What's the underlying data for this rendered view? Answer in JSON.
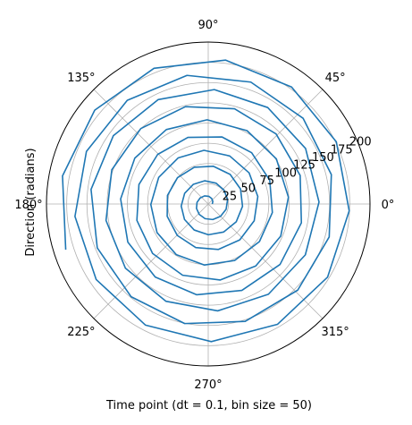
{
  "chart_data": {
    "type": "line",
    "projection": "polar",
    "title": "",
    "xlabel": "Time point (dt = 0.1, bin size = 50)",
    "ylabel": "Direction (radians)",
    "theta_tick_labels": [
      "0°",
      "45°",
      "90°",
      "135°",
      "180°",
      "225°",
      "270°",
      "315°"
    ],
    "theta_tick_degrees": [
      0,
      45,
      90,
      135,
      180,
      225,
      270,
      315
    ],
    "r_tick_labels": [
      "25",
      "50",
      "75",
      "100",
      "125",
      "150",
      "175",
      "200"
    ],
    "r_ticks": [
      25,
      50,
      75,
      100,
      125,
      150,
      175,
      200
    ],
    "rlim": [
      0,
      200
    ],
    "grid": true,
    "series": [
      {
        "color": "#1f77b4",
        "curve": "archimedean spiral, counter-clockwise, starting near theta = 0",
        "theta_radians": [
          0.0,
          0.5,
          1.0,
          1.5,
          2.0,
          2.5,
          3.0,
          3.5,
          4.0,
          4.5,
          5.0,
          5.5,
          6.0,
          6.5,
          7.0,
          7.5,
          8.0,
          8.5,
          9.0,
          9.5,
          10.0,
          10.5,
          11.0,
          11.5,
          12.0,
          12.5,
          13.0,
          13.5,
          14.0,
          14.5,
          15.0,
          15.5,
          16.0,
          16.5,
          17.0,
          17.5,
          18.0,
          18.5,
          19.0,
          19.5,
          20.0,
          20.5,
          21.0,
          21.5,
          22.0,
          22.5,
          23.0,
          23.5,
          24.0,
          24.5,
          25.0,
          25.5,
          26.0,
          26.5,
          27.0,
          27.5,
          28.0,
          28.5,
          29.0,
          29.5,
          30.0,
          30.5,
          31.0,
          31.5,
          32.0,
          32.5,
          33.0,
          33.5,
          34.0,
          34.5,
          35.0,
          35.5,
          36.0,
          36.5,
          37.0,
          37.5,
          38.0,
          38.5,
          39.0,
          39.5,
          40.0,
          40.5,
          41.0,
          41.5,
          42.0,
          42.5,
          43.0,
          43.5,
          44.0,
          44.5,
          45.0,
          45.5,
          46.0,
          46.5,
          47.0,
          47.5,
          48.0,
          48.5,
          49.0,
          49.5,
          50.0,
          50.5,
          51.0,
          51.5,
          52.0,
          52.5,
          53.0,
          53.5,
          54.0,
          54.5,
          55.0,
          55.5,
          56.0,
          56.5,
          57.0,
          57.5,
          58.0,
          58.5,
          59.0,
          59.5,
          60.0
        ],
        "r": [
          5.0,
          6.5,
          8.0,
          9.5,
          11.0,
          12.5,
          14.0,
          15.5,
          17.0,
          18.5,
          20.0,
          21.5,
          23.0,
          24.5,
          26.0,
          27.5,
          29.0,
          30.5,
          32.0,
          33.5,
          35.0,
          36.5,
          38.0,
          39.5,
          41.0,
          42.5,
          44.0,
          45.5,
          47.0,
          48.5,
          50.0,
          51.5,
          53.0,
          54.5,
          56.0,
          57.5,
          59.0,
          60.5,
          62.0,
          63.5,
          65.0,
          66.5,
          68.0,
          69.5,
          71.0,
          72.5,
          74.0,
          75.5,
          77.0,
          78.5,
          80.0,
          81.5,
          83.0,
          84.5,
          86.0,
          87.5,
          89.0,
          90.5,
          92.0,
          93.5,
          95.0,
          96.5,
          98.0,
          99.5,
          101.0,
          102.5,
          104.0,
          105.5,
          107.0,
          108.5,
          110.0,
          111.5,
          113.0,
          114.5,
          116.0,
          117.5,
          119.0,
          120.5,
          122.0,
          123.5,
          125.0,
          126.5,
          128.0,
          129.5,
          131.0,
          132.5,
          134.0,
          135.5,
          137.0,
          138.5,
          140.0,
          141.5,
          143.0,
          144.5,
          146.0,
          147.5,
          149.0,
          150.5,
          152.0,
          153.5,
          155.0,
          156.5,
          158.0,
          159.5,
          161.0,
          162.5,
          164.0,
          165.5,
          167.0,
          168.5,
          170.0,
          171.5,
          173.0,
          174.5,
          176.0,
          177.5,
          179.0,
          180.5,
          182.0,
          183.5,
          185.0
        ]
      }
    ]
  }
}
